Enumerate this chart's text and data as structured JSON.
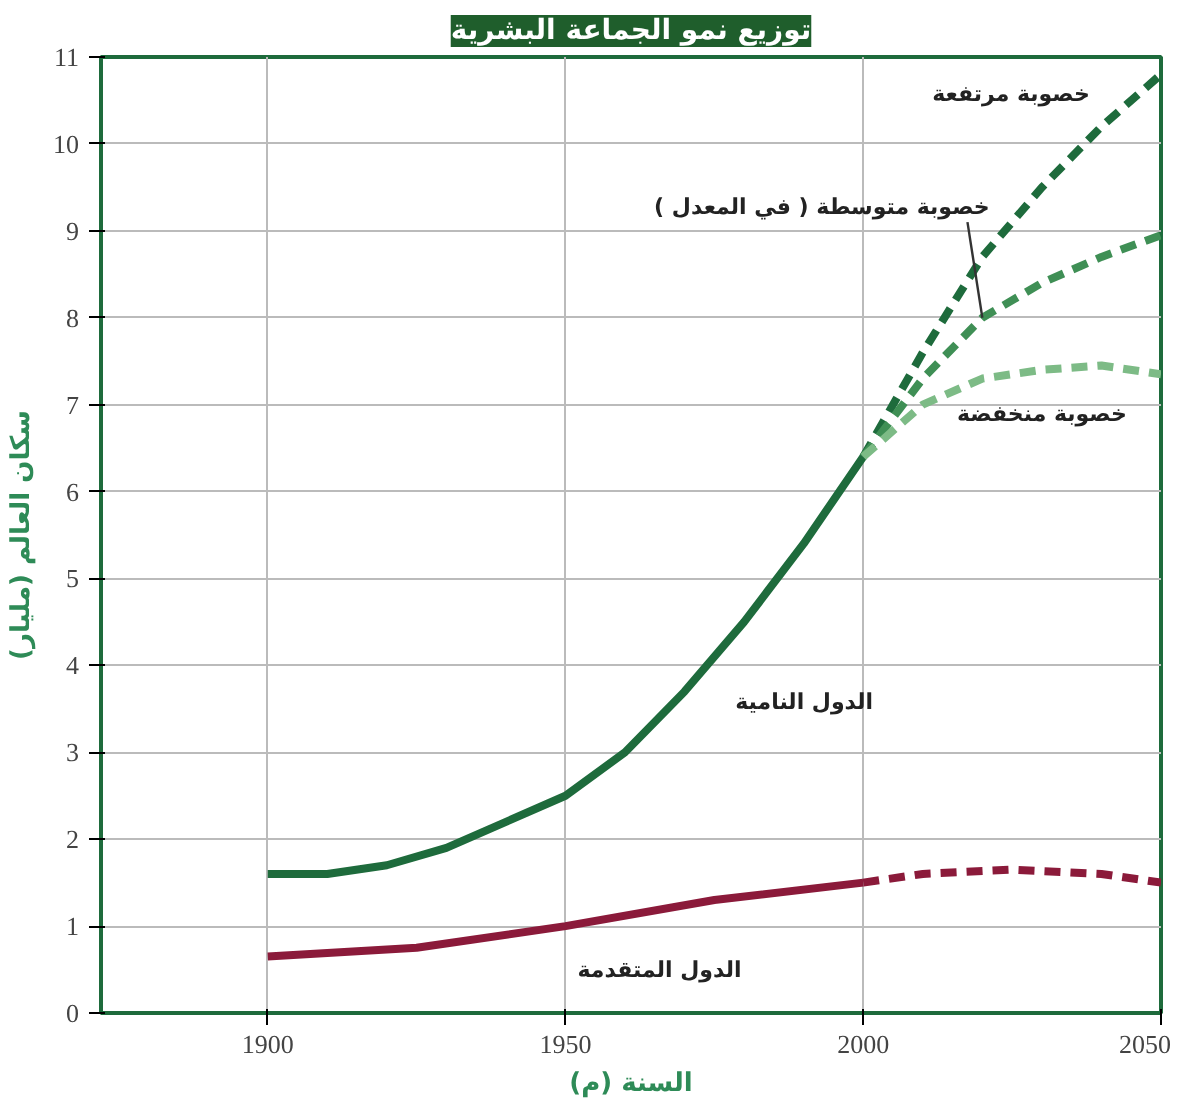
{
  "chart_data": {
    "type": "line",
    "title": "توزيع نمو الجماعة البشرية",
    "xlabel": "السنة (م)",
    "ylabel": "سكان العالم (مليار)",
    "xlim": [
      1872,
      2050
    ],
    "xticks": [
      1900,
      1950,
      2000,
      2050
    ],
    "ylim": [
      0,
      11
    ],
    "yticks": [
      0,
      1,
      2,
      3,
      4,
      5,
      6,
      7,
      8,
      9,
      10,
      11
    ],
    "grid": true,
    "series": [
      {
        "name": "الدول النامية",
        "color": "#1e6b3c",
        "line_style": "solid",
        "x": [
          1900,
          1910,
          1920,
          1930,
          1940,
          1950,
          1960,
          1970,
          1980,
          1990,
          2000
        ],
        "values": [
          1.6,
          1.6,
          1.7,
          1.9,
          2.2,
          2.5,
          3.0,
          3.7,
          4.5,
          5.4,
          6.4
        ]
      },
      {
        "name": "خصوبة مرتفعة",
        "color": "#1e6b3c",
        "line_style": "dashed",
        "x": [
          2000,
          2010,
          2020,
          2030,
          2040,
          2050
        ],
        "values": [
          6.4,
          7.6,
          8.7,
          9.5,
          10.2,
          10.8
        ]
      },
      {
        "name": "خصوبة متوسطة ( في المعدل )",
        "color": "#3f8f55",
        "line_style": "dashed",
        "x": [
          2000,
          2010,
          2020,
          2030,
          2040,
          2050
        ],
        "values": [
          6.4,
          7.3,
          8.0,
          8.4,
          8.7,
          8.95
        ]
      },
      {
        "name": "خصوبة منخفضة",
        "color": "#7dbb86",
        "line_style": "dashed",
        "x": [
          2000,
          2010,
          2020,
          2030,
          2040,
          2050
        ],
        "values": [
          6.4,
          7.0,
          7.3,
          7.4,
          7.45,
          7.35
        ]
      },
      {
        "name": "الدول المتقدمة",
        "color": "#8b1a3a",
        "line_style": "solid",
        "x": [
          1900,
          1925,
          1950,
          1975,
          2000
        ],
        "values": [
          0.65,
          0.75,
          1.0,
          1.3,
          1.5
        ]
      },
      {
        "color": "#8b1a3a",
        "line_style": "dashed",
        "x": [
          2000,
          2010,
          2025,
          2040,
          2050
        ],
        "values": [
          1.5,
          1.6,
          1.65,
          1.6,
          1.5
        ]
      }
    ]
  }
}
